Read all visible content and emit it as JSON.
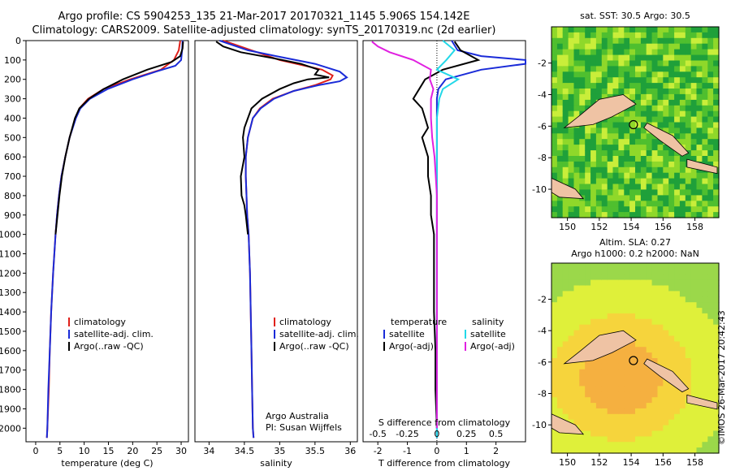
{
  "header": {
    "line1": "Argo profile: CS 5904253_135 21-Mar-2017 20170321_1145 5.906S 154.142E",
    "line2": "Climatology: CARS2009. Satellite-adjusted climatology: synTS_20170319.nc (2d earlier)"
  },
  "colors": {
    "climatology": "#e0201a",
    "satellite": "#1a2bd8",
    "argo": "#000000",
    "salinity_satellite": "#22d8e8",
    "salinity_argo": "#e020e0",
    "land": "#efc3a4"
  },
  "chart_data": [
    {
      "id": "temperature",
      "type": "line",
      "xlabel": "temperature (deg C)",
      "ylabel": "",
      "xlim": [
        -2,
        31.5
      ],
      "ylim": [
        2070,
        0
      ],
      "x_ticks": [
        0,
        5,
        10,
        15,
        20,
        25,
        30
      ],
      "y_ticks": [
        0,
        100,
        200,
        300,
        400,
        500,
        600,
        700,
        800,
        900,
        1000,
        1100,
        1200,
        1300,
        1400,
        1500,
        1600,
        1700,
        1800,
        1900,
        2000
      ],
      "legend": [
        "climatology",
        "satellite-adj. clim.",
        "Argo(..raw -QC)"
      ],
      "legend_position": "lower-middle",
      "series": [
        {
          "name": "climatology",
          "depth": [
            0,
            50,
            100,
            150,
            200,
            250,
            300,
            350,
            400,
            500,
            600,
            700,
            800,
            900,
            1000,
            1200,
            1400,
            1600,
            1800,
            2000,
            2050
          ],
          "values": [
            29.8,
            29.5,
            28.5,
            25.8,
            19.5,
            14.0,
            10.8,
            9.0,
            8.2,
            7.0,
            6.1,
            5.3,
            4.8,
            4.4,
            4.1,
            3.6,
            3.2,
            2.9,
            2.7,
            2.4,
            2.3
          ]
        },
        {
          "name": "satellite-adj. clim.",
          "depth": [
            0,
            50,
            100,
            130,
            160,
            200,
            250,
            300,
            350,
            400,
            500,
            600,
            700,
            800,
            900,
            1000,
            1200,
            1400,
            1600,
            1800,
            2000,
            2050
          ],
          "values": [
            30.3,
            30.2,
            30.0,
            28.8,
            24.8,
            20.0,
            14.8,
            11.2,
            9.2,
            8.3,
            7.0,
            6.1,
            5.3,
            4.8,
            4.4,
            4.1,
            3.6,
            3.2,
            2.9,
            2.6,
            2.4,
            2.3
          ]
        },
        {
          "name": "Argo(..raw -QC)",
          "depth": [
            5,
            40,
            80,
            110,
            150,
            200,
            250,
            300,
            350,
            400,
            500,
            600,
            700,
            800,
            900,
            1000
          ],
          "values": [
            30.4,
            30.3,
            29.8,
            28.0,
            23.0,
            18.0,
            14.0,
            11.0,
            9.0,
            8.1,
            7.0,
            6.1,
            5.4,
            4.9,
            4.5,
            4.1
          ]
        }
      ]
    },
    {
      "id": "salinity",
      "type": "line",
      "xlabel": "salinity",
      "ylabel": "",
      "xlim": [
        33.8,
        36.1
      ],
      "ylim": [
        2070,
        0
      ],
      "x_ticks": [
        34,
        34.5,
        35,
        35.5,
        36
      ],
      "legend": [
        "climatology",
        "satellite-adj. clim.",
        "Argo(..raw -QC)"
      ],
      "legend_position": "lower-middle",
      "annotation": [
        "Argo Australia",
        "PI: Susan Wijffels"
      ],
      "series": [
        {
          "name": "climatology",
          "depth": [
            0,
            50,
            100,
            150,
            180,
            200,
            230,
            260,
            300,
            350,
            400,
            500,
            600,
            700,
            800,
            900,
            1000,
            1200,
            1400,
            1600,
            1800,
            2000,
            2050
          ],
          "values": [
            34.2,
            34.6,
            35.0,
            35.6,
            35.75,
            35.72,
            35.5,
            35.2,
            34.9,
            34.72,
            34.62,
            34.55,
            34.52,
            34.52,
            34.53,
            34.54,
            34.56,
            34.58,
            34.59,
            34.6,
            34.61,
            34.62,
            34.63
          ]
        },
        {
          "name": "satellite-adj. clim.",
          "depth": [
            0,
            50,
            80,
            120,
            160,
            190,
            210,
            230,
            260,
            300,
            350,
            400,
            500,
            600,
            700,
            800,
            900,
            1000,
            1200,
            1400,
            1600,
            1800,
            2000,
            2050
          ],
          "values": [
            34.15,
            34.55,
            34.95,
            35.5,
            35.85,
            35.95,
            35.85,
            35.55,
            35.2,
            34.92,
            34.73,
            34.62,
            34.55,
            34.52,
            34.52,
            34.53,
            34.54,
            34.56,
            34.58,
            34.59,
            34.6,
            34.61,
            34.62,
            34.63
          ]
        },
        {
          "name": "Argo(..raw -QC)",
          "depth": [
            5,
            30,
            60,
            90,
            120,
            150,
            175,
            190,
            200,
            220,
            250,
            300,
            350,
            400,
            450,
            500,
            600,
            700,
            800,
            850,
            900,
            1000
          ],
          "values": [
            34.1,
            34.2,
            34.45,
            34.9,
            35.3,
            35.55,
            35.5,
            35.7,
            35.4,
            35.2,
            35.0,
            34.75,
            34.6,
            34.55,
            34.5,
            34.48,
            34.5,
            34.45,
            34.46,
            34.5,
            34.52,
            34.55
          ]
        }
      ]
    },
    {
      "id": "differences",
      "type": "line",
      "xlabel": "T difference from climatology",
      "top_xlabel": "S difference from climatology",
      "xlim": [
        -2.5,
        3
      ],
      "ylim": [
        2070,
        0
      ],
      "x_ticks": [
        -2,
        -1,
        0,
        1,
        2
      ],
      "top_x_ticks": [
        "-0.5",
        "-0.25",
        "0",
        "0.25",
        "0.5"
      ],
      "legend": [
        "temperature",
        "satellite",
        "Argo(-adj)",
        "salinity",
        "satellite",
        "Argo(-adj)"
      ],
      "legend_position": "lower-middle",
      "series": [
        {
          "name": "satellite",
          "variable": "temperature",
          "depth": [
            0,
            50,
            80,
            100,
            120,
            150,
            200,
            250,
            300,
            400,
            500,
            600,
            800,
            1000,
            1500,
            2000,
            2050
          ],
          "values": [
            0.5,
            0.7,
            1.5,
            3.0,
            3.0,
            1.5,
            0.3,
            0.05,
            0.0,
            0.0,
            0.0,
            0.0,
            0.0,
            0.0,
            0.0,
            0.0,
            0.0
          ]
        },
        {
          "name": "Argo(-adj)",
          "variable": "temperature",
          "depth": [
            5,
            50,
            100,
            150,
            200,
            250,
            300,
            350,
            400,
            450,
            500,
            600,
            700,
            800,
            900,
            1000,
            1200,
            1400,
            1600,
            1800,
            2000
          ],
          "values": [
            0.6,
            0.8,
            1.4,
            0.2,
            -0.4,
            -0.6,
            -0.8,
            -0.5,
            -0.4,
            -0.3,
            -0.5,
            -0.3,
            -0.3,
            -0.2,
            -0.2,
            -0.1,
            -0.1,
            -0.1,
            -0.05,
            -0.05,
            0.0
          ]
        },
        {
          "name": "satellite",
          "variable": "salinity",
          "depth": [
            0,
            50,
            100,
            150,
            200,
            250,
            300,
            400,
            500,
            700,
            1000,
            1500,
            2000,
            2050
          ],
          "values": [
            0.05,
            0.15,
            0.08,
            0.0,
            0.18,
            0.05,
            0.02,
            0.0,
            0.0,
            0.0,
            0.0,
            0.0,
            0.0,
            0.0
          ]
        },
        {
          "name": "Argo(-adj)",
          "variable": "salinity",
          "depth": [
            5,
            30,
            60,
            100,
            150,
            200,
            250,
            300,
            400,
            500,
            600,
            700,
            800,
            900,
            1000,
            1200,
            1500,
            2000
          ],
          "values": [
            -0.55,
            -0.5,
            -0.4,
            -0.2,
            -0.05,
            -0.06,
            -0.03,
            -0.05,
            -0.05,
            -0.04,
            -0.02,
            -0.01,
            0.0,
            0.0,
            0.0,
            0.0,
            0.0,
            0.0
          ]
        }
      ]
    },
    {
      "id": "map-sst",
      "type": "heatmap",
      "title": "sat. SST: 30.5  Argo: 30.5",
      "x_ticks": [
        150,
        152,
        154,
        156,
        158
      ],
      "y_ticks": [
        -2,
        -4,
        -6,
        -8,
        -10
      ],
      "xlim": [
        149,
        159.5
      ],
      "ylim": [
        -11.8,
        0.3
      ],
      "profile_marker": {
        "lon": 154.142,
        "lat": -5.906
      },
      "palette": [
        "#1fa03a",
        "#4fbf2f",
        "#8fd82a",
        "#c9ee3a"
      ]
    },
    {
      "id": "map-sla",
      "type": "heatmap",
      "title": "Altim. SLA: 0.27",
      "subtitle": "Argo h1000: 0.2  h2000: NaN",
      "x_ticks": [
        150,
        152,
        154,
        156,
        158
      ],
      "y_ticks": [
        -2,
        -4,
        -6,
        -8,
        -10
      ],
      "xlim": [
        149,
        159.5
      ],
      "ylim": [
        -11.8,
        0.3
      ],
      "profile_marker": {
        "lon": 154.142,
        "lat": -5.906
      },
      "palette": [
        "#9bd84a",
        "#dff03a",
        "#f6d43c",
        "#f5b040"
      ]
    }
  ],
  "credit": "©IMOS 26-Mar-2017 20:42:43"
}
